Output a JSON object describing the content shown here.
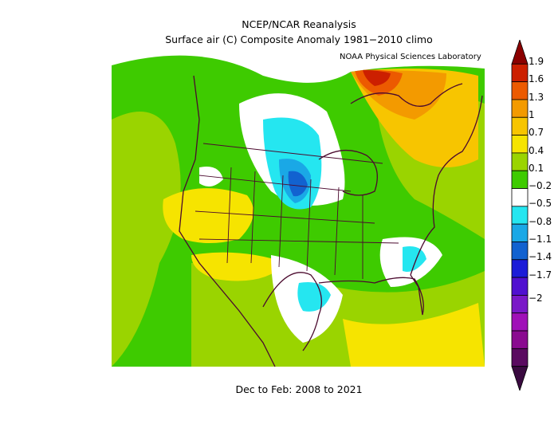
{
  "header": {
    "title_line1": "NCEP/NCAR Reanalysis",
    "title_line2": "Surface air (C) Composite Anomaly 1981−2010 climo",
    "credit": "NOAA Physical Sciences Laboratory"
  },
  "footer": {
    "period": "Dec to Feb: 2008 to 2021"
  },
  "colorbar": {
    "labels": [
      "1.9",
      "1.6",
      "1.3",
      "1",
      "0.7",
      "0.4",
      "0.1",
      "−0.2",
      "−0.5",
      "−0.8",
      "−1.1",
      "−1.4",
      "−1.7",
      "−2"
    ],
    "colors": [
      "#8b0000",
      "#cc1f00",
      "#ec5a00",
      "#f39a00",
      "#f7c500",
      "#f6e400",
      "#9ad400",
      "#3ecb00",
      "#ffffff",
      "#25e6f0",
      "#1aa8e6",
      "#1262d0",
      "#1c1cd8",
      "#5010d0",
      "#7a18c8",
      "#a010b8",
      "#8a0a90",
      "#5a0a60",
      "#3a0a40"
    ]
  }
}
